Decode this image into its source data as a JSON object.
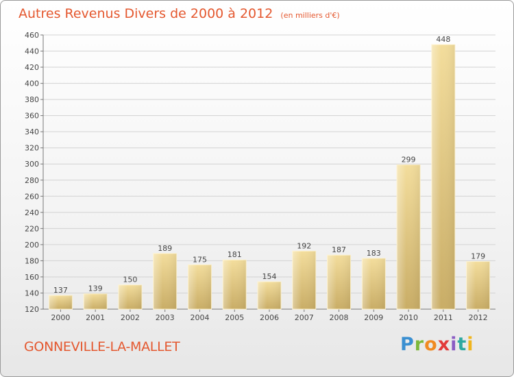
{
  "title": "Autres Revenus Divers de 2000 à 2012",
  "subtitle": "(en milliers d'€)",
  "place_name": "GONNEVILLE-LA-MALLET",
  "brand": {
    "letters": [
      "P",
      "r",
      "o",
      "x",
      "i",
      "t",
      "i"
    ],
    "colors": [
      "#3a8fd1",
      "#7cb83a",
      "#f08a22",
      "#e23b3b",
      "#8a5cc4",
      "#2ea8a0",
      "#f0b51e"
    ]
  },
  "chart_data": {
    "type": "bar",
    "categories": [
      "2000",
      "2001",
      "2002",
      "2003",
      "2004",
      "2005",
      "2006",
      "2007",
      "2008",
      "2009",
      "2010",
      "2011",
      "2012"
    ],
    "values": [
      137,
      139,
      150,
      189,
      175,
      181,
      154,
      192,
      187,
      183,
      299,
      448,
      179
    ],
    "ylim": [
      120,
      460
    ],
    "yticks": [
      120,
      140,
      160,
      180,
      200,
      220,
      240,
      260,
      280,
      300,
      320,
      340,
      360,
      380,
      400,
      420,
      440,
      460
    ],
    "grid": true,
    "bar_color": "#e9cf84"
  }
}
